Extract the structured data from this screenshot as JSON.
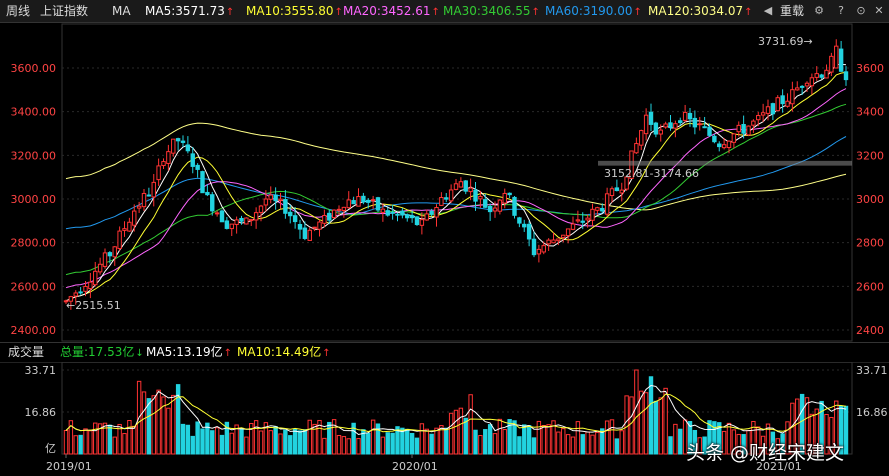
{
  "header": {
    "period_label": "周线",
    "index_name": "上证指数",
    "indicator": "MA",
    "ma5": "MA5:3571.73",
    "ma10": "MA10:3555.80",
    "ma20": "MA20:3452.61",
    "ma30": "MA30:3406.55",
    "ma60": "MA60:3190.00",
    "ma120": "MA120:3034.07",
    "overlay_label": "重载",
    "up_arrow": "↑",
    "down_arrow": "↓"
  },
  "volume_header": {
    "title": "成交量",
    "total": "总量:17.53亿",
    "ma5": "MA5:13.19亿",
    "ma10": "MA10:14.49亿"
  },
  "price_axis": {
    "ticks": [
      "3600.00",
      "3400.00",
      "3200.00",
      "3000.00",
      "2800.00",
      "2600.00",
      "2400.00"
    ],
    "ticks_right": [
      "3600",
      "3400",
      "3200",
      "3000",
      "2800",
      "2600",
      "2400"
    ]
  },
  "volume_axis": {
    "ticks": [
      "33.71",
      "16.86"
    ],
    "unit": "亿"
  },
  "time_axis": {
    "labels": [
      "2019/01",
      "2020/01",
      "2021/01"
    ]
  },
  "annotations": {
    "high": "3731.69→",
    "low": "←2515.51",
    "range": "3152.81-3174.66"
  },
  "watermark": "头条 @财经宋建文",
  "colors": {
    "up": "#ff3333",
    "down": "#22d3e0",
    "ma5": "#ffffff",
    "ma10": "#ffff33",
    "ma20": "#ff66ff",
    "ma30": "#33cc33",
    "ma60": "#2299ee",
    "ma120": "#ffff88"
  }
}
